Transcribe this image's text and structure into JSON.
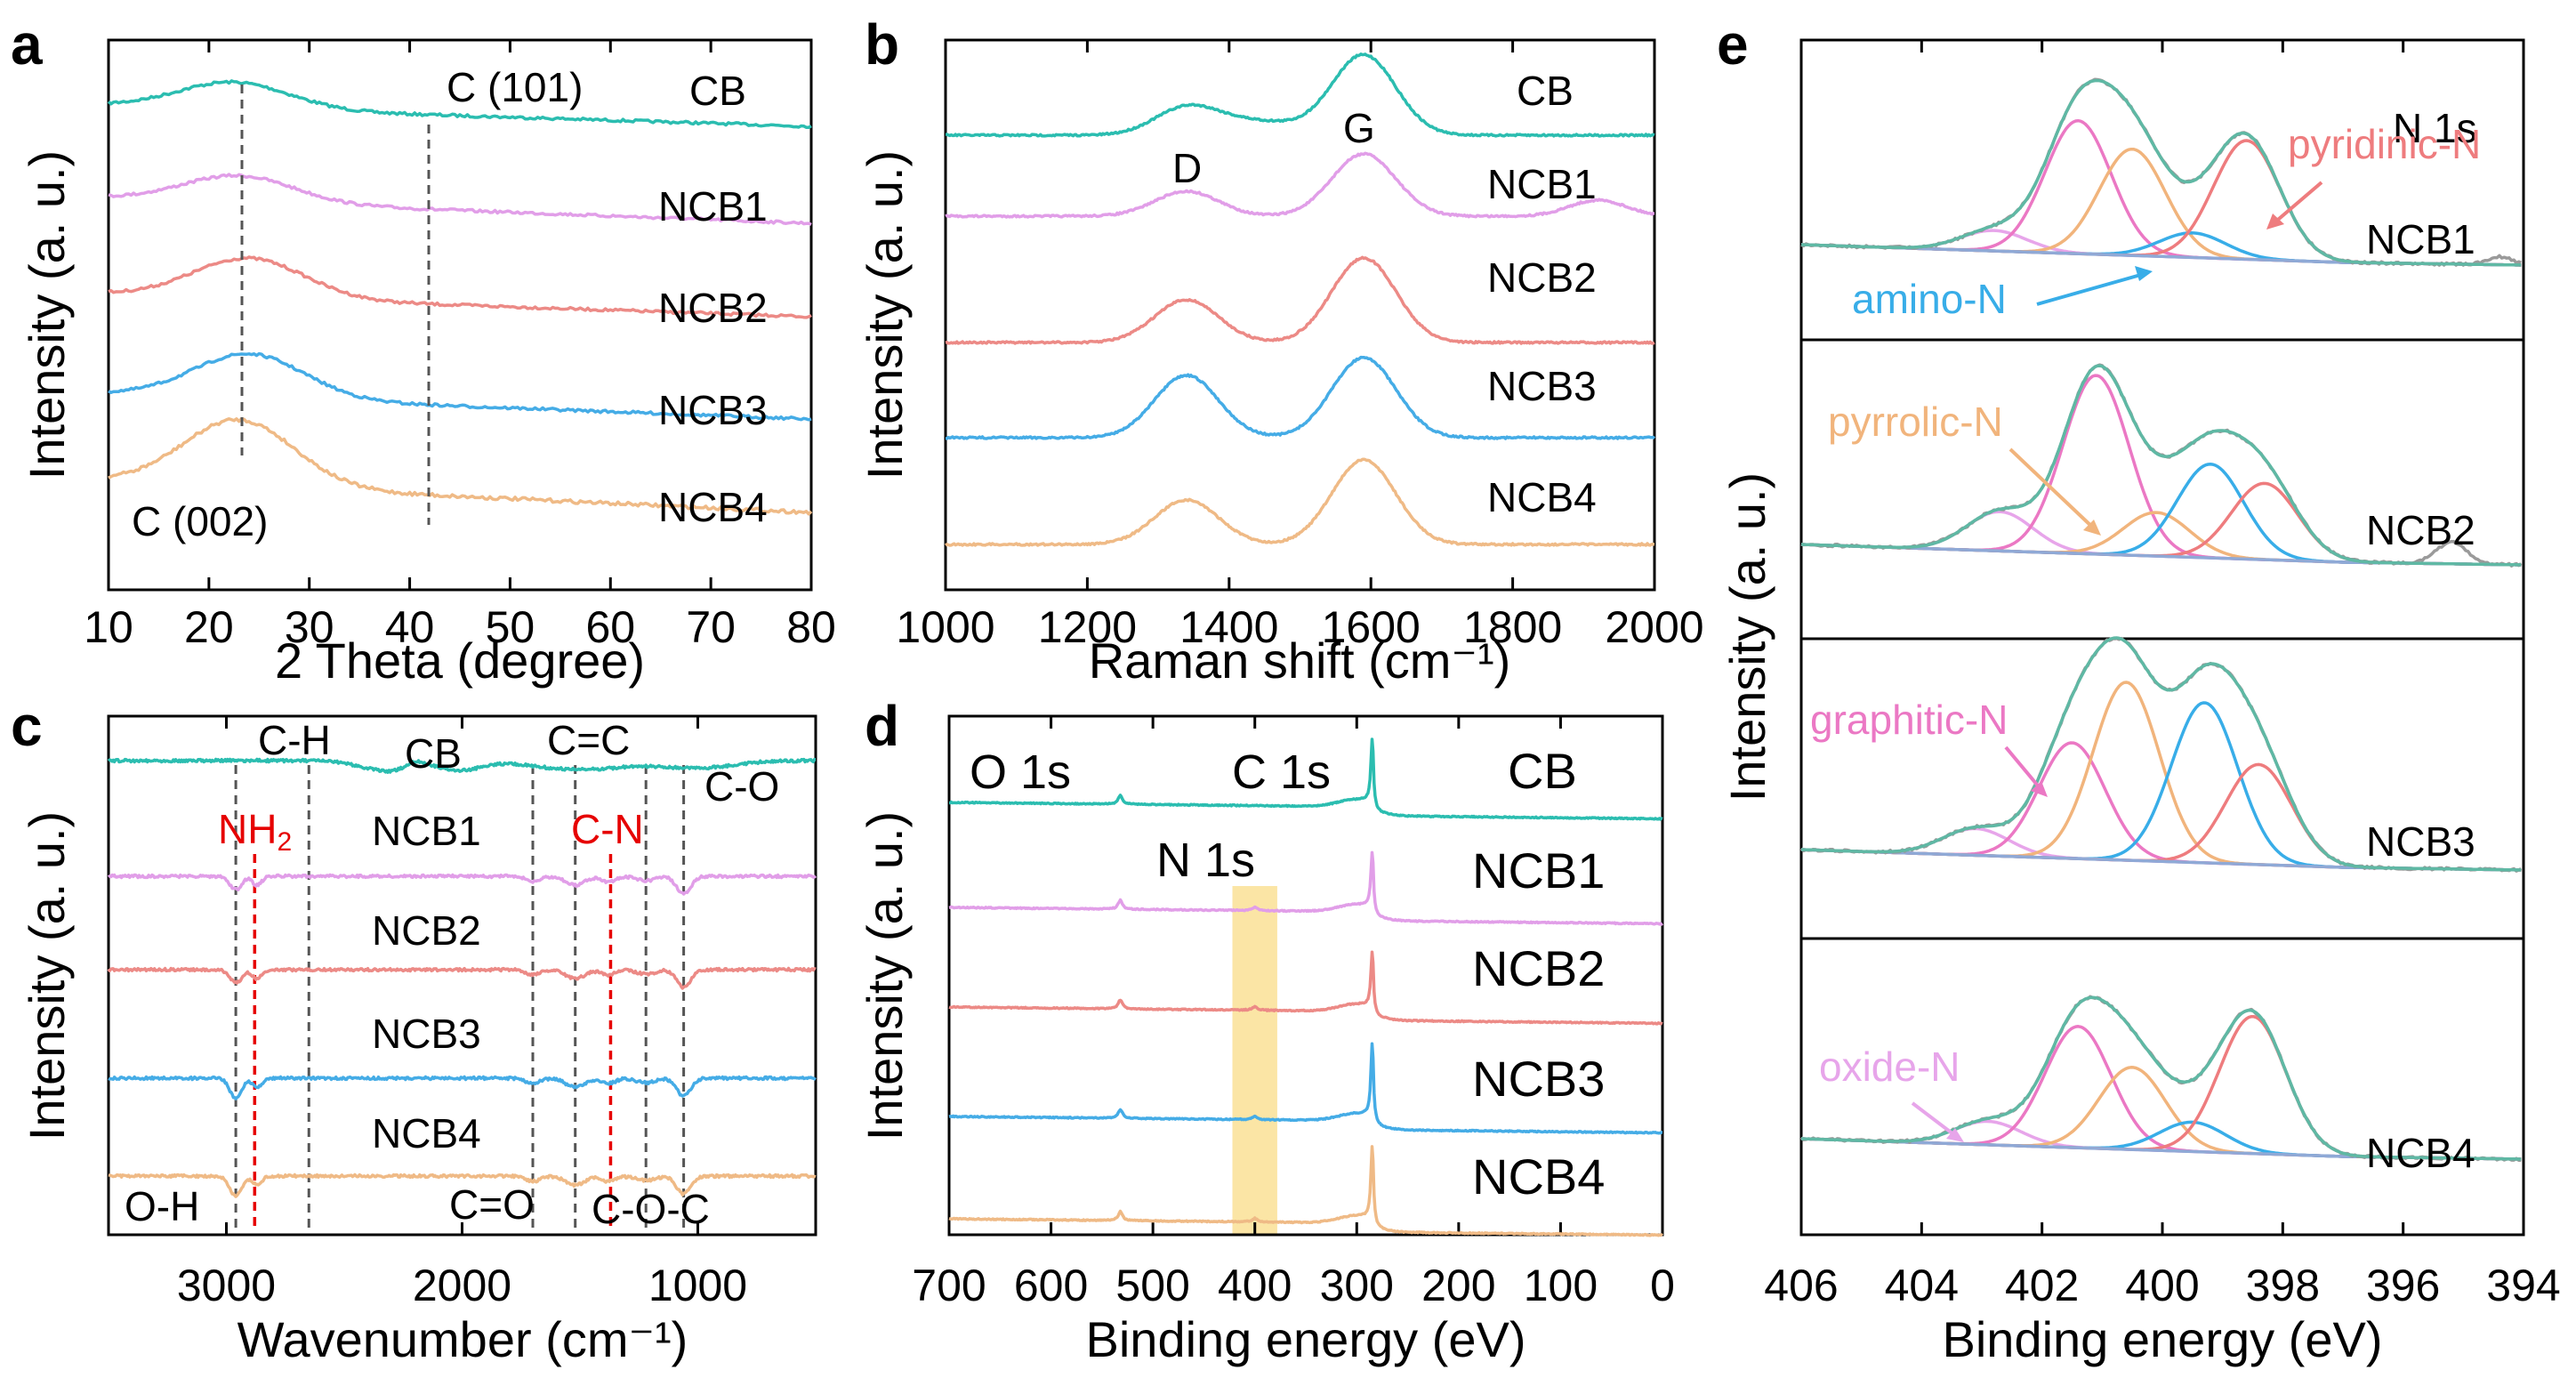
{
  "colors": {
    "CB": "#2bbdb0",
    "NCB1": "#e19ee8",
    "NCB2": "#ec8a86",
    "NCB3": "#45ace6",
    "NCB4": "#efba86",
    "pyridinic": "#ee7c7e",
    "pyrrolic": "#f1b47c",
    "graphitic": "#eb78c4",
    "oxide": "#e7a5ea",
    "amino": "#38ade8",
    "envelope": "#5fb8a4",
    "red_label": "#e60000",
    "highlight": "#fbe5a5"
  },
  "chart_data": [
    {
      "panel": "a",
      "type": "line",
      "xlabel": "2 Theta (degree)",
      "ylabel": "Intensity (a. u.)",
      "xlim": [
        10,
        80
      ],
      "xticks": [
        "10",
        "20",
        "30",
        "40",
        "50",
        "60",
        "70",
        "80"
      ],
      "series": [
        {
          "name": "CB",
          "values": [
            [
              10,
              1.0
            ],
            [
              15,
              0.96
            ],
            [
              20,
              1.06
            ],
            [
              23,
              1.1
            ],
            [
              28,
              0.99
            ],
            [
              40,
              0.92
            ],
            [
              60,
              0.88
            ],
            [
              80,
              0.86
            ]
          ]
        },
        {
          "name": "NCB1",
          "values": [
            [
              10,
              1.0
            ],
            [
              15,
              0.98
            ],
            [
              20,
              1.08
            ],
            [
              23,
              1.12
            ],
            [
              28,
              1.0
            ],
            [
              40,
              0.94
            ],
            [
              60,
              0.9
            ],
            [
              80,
              0.88
            ]
          ]
        },
        {
          "name": "NCB2",
          "values": [
            [
              10,
              1.0
            ],
            [
              15,
              0.98
            ],
            [
              20,
              1.1
            ],
            [
              24,
              1.15
            ],
            [
              28,
              1.02
            ],
            [
              40,
              0.94
            ],
            [
              60,
              0.9
            ],
            [
              80,
              0.87
            ]
          ]
        },
        {
          "name": "NCB3",
          "values": [
            [
              10,
              1.0
            ],
            [
              15,
              1.01
            ],
            [
              20,
              1.13
            ],
            [
              24,
              1.18
            ],
            [
              28,
              1.05
            ],
            [
              40,
              0.93
            ],
            [
              60,
              0.89
            ],
            [
              80,
              0.86
            ]
          ]
        },
        {
          "name": "NCB4",
          "values": [
            [
              10,
              1.0
            ],
            [
              15,
              1.06
            ],
            [
              20,
              1.22
            ],
            [
              23,
              1.28
            ],
            [
              28,
              1.1
            ],
            [
              40,
              0.93
            ],
            [
              60,
              0.88
            ],
            [
              80,
              0.85
            ]
          ]
        }
      ],
      "annotations": [
        "C (101)",
        "C (002)"
      ],
      "reference_lines": [
        23,
        42
      ]
    },
    {
      "panel": "b",
      "type": "line",
      "xlabel": "Raman shift (cm⁻¹)",
      "ylabel": "Intensity (a. u.)",
      "xlim": [
        1000,
        2000
      ],
      "xticks": [
        "1000",
        "1200",
        "1400",
        "1600",
        "1800",
        "2000"
      ],
      "series": [
        {
          "name": "CB",
          "values": [
            [
              1000,
              0
            ],
            [
              1200,
              0.02
            ],
            [
              1340,
              0.3
            ],
            [
              1440,
              0.2
            ],
            [
              1590,
              1.0
            ],
            [
              1700,
              0.05
            ],
            [
              2000,
              0
            ]
          ]
        },
        {
          "name": "NCB1",
          "values": [
            [
              1000,
              0
            ],
            [
              1200,
              0.02
            ],
            [
              1340,
              0.3
            ],
            [
              1440,
              0.12
            ],
            [
              1590,
              1.0
            ],
            [
              1700,
              0.05
            ],
            [
              1900,
              0.1
            ],
            [
              2000,
              0
            ]
          ]
        },
        {
          "name": "NCB2",
          "values": [
            [
              1000,
              0
            ],
            [
              1200,
              0.02
            ],
            [
              1340,
              0.55
            ],
            [
              1440,
              0.2
            ],
            [
              1590,
              1.0
            ],
            [
              1700,
              0.05
            ],
            [
              2000,
              0
            ]
          ]
        },
        {
          "name": "NCB3",
          "values": [
            [
              1000,
              0
            ],
            [
              1200,
              0.02
            ],
            [
              1340,
              0.8
            ],
            [
              1440,
              0.2
            ],
            [
              1590,
              1.0
            ],
            [
              1700,
              0.05
            ],
            [
              2000,
              0
            ]
          ]
        },
        {
          "name": "NCB4",
          "values": [
            [
              1000,
              0
            ],
            [
              1200,
              0.02
            ],
            [
              1340,
              0.55
            ],
            [
              1440,
              0.15
            ],
            [
              1590,
              1.0
            ],
            [
              1700,
              0.05
            ],
            [
              2000,
              0
            ]
          ]
        }
      ],
      "annotations": [
        "D",
        "G"
      ]
    },
    {
      "panel": "c",
      "type": "line",
      "xlabel": "Wavenumber (cm⁻¹)",
      "ylabel": "Intensity (a. u.)",
      "xlim": [
        3500,
        500
      ],
      "xticks": [
        "3000",
        "2000",
        "1000"
      ],
      "series": [
        {
          "name": "CB"
        },
        {
          "name": "NCB1"
        },
        {
          "name": "NCB2"
        },
        {
          "name": "NCB3"
        },
        {
          "name": "NCB4"
        }
      ],
      "annotations": {
        "ch": "C-H",
        "cc": "C=C",
        "co": "C-O",
        "nh2": "NH",
        "nh2_sub": "2",
        "cn": "C-N",
        "oh": "O-H",
        "cdo": "C=O",
        "coc": "C-O-C"
      },
      "reference_lines": [
        2960,
        2650,
        1700,
        1520,
        1220,
        1060
      ],
      "red_lines": [
        2880,
        1370
      ]
    },
    {
      "panel": "d",
      "type": "line",
      "xlabel": "Binding energy (eV)",
      "ylabel": "Intensity (a. u.)",
      "xlim": [
        700,
        0
      ],
      "xticks": [
        "700",
        "600",
        "500",
        "400",
        "300",
        "200",
        "100",
        "0"
      ],
      "series": [
        {
          "name": "CB"
        },
        {
          "name": "NCB1"
        },
        {
          "name": "NCB2"
        },
        {
          "name": "NCB3"
        },
        {
          "name": "NCB4"
        }
      ],
      "annotations": {
        "o1s": "O 1s",
        "c1s": "C 1s",
        "n1s": "N 1s"
      },
      "peaks": {
        "O 1s": 532,
        "C 1s": 284.8,
        "N 1s": 400
      },
      "highlight_range": [
        378,
        422
      ]
    },
    {
      "panel": "e",
      "type": "line",
      "title": "N 1s",
      "xlabel": "Binding energy (eV)",
      "ylabel": "Intensity (a. u.)",
      "xlim": [
        406,
        394
      ],
      "xticks": [
        "406",
        "404",
        "402",
        "400",
        "398",
        "396",
        "394"
      ],
      "subplots": [
        {
          "name": "NCB1",
          "components": [
            {
              "label": "oxide-N",
              "center": 402.8,
              "amp": 0.1
            },
            {
              "label": "graphitic-N",
              "center": 401.4,
              "amp": 0.65
            },
            {
              "label": "pyrrolic-N",
              "center": 400.5,
              "amp": 0.52
            },
            {
              "label": "amino-N",
              "center": 399.5,
              "amp": 0.12
            },
            {
              "label": "pyridinic-N",
              "center": 398.6,
              "amp": 0.58
            }
          ]
        },
        {
          "name": "NCB2",
          "components": [
            {
              "label": "oxide-N",
              "center": 402.7,
              "amp": 0.18
            },
            {
              "label": "graphitic-N",
              "center": 401.1,
              "amp": 0.82
            },
            {
              "label": "pyrrolic-N",
              "center": 400.1,
              "amp": 0.2
            },
            {
              "label": "amino-N",
              "center": 399.2,
              "amp": 0.43
            },
            {
              "label": "pyridinic-N",
              "center": 398.3,
              "amp": 0.35
            }
          ]
        },
        {
          "name": "NCB3",
          "components": [
            {
              "label": "oxide-N",
              "center": 403.1,
              "amp": 0.12
            },
            {
              "label": "graphitic-N",
              "center": 401.5,
              "amp": 0.52
            },
            {
              "label": "pyrrolic-N",
              "center": 400.6,
              "amp": 0.8
            },
            {
              "label": "amino-N",
              "center": 399.3,
              "amp": 0.72
            },
            {
              "label": "pyridinic-N",
              "center": 398.4,
              "amp": 0.45
            }
          ]
        },
        {
          "name": "NCB4",
          "components": [
            {
              "label": "oxide-N",
              "center": 402.9,
              "amp": 0.12
            },
            {
              "label": "graphitic-N",
              "center": 401.4,
              "amp": 0.62
            },
            {
              "label": "pyrrolic-N",
              "center": 400.5,
              "amp": 0.42
            },
            {
              "label": "amino-N",
              "center": 399.5,
              "amp": 0.15
            },
            {
              "label": "pyridinic-N",
              "center": 398.5,
              "amp": 0.7
            }
          ]
        }
      ],
      "labels": {
        "pyridinic": "pyridinic-N",
        "amino": "amino-N",
        "pyrrolic": "pyrrolic-N",
        "graphitic": "graphitic-N",
        "oxide": "oxide-N"
      }
    }
  ],
  "panel_labels": [
    "a",
    "b",
    "c",
    "d",
    "e"
  ],
  "series_names": [
    "CB",
    "NCB1",
    "NCB2",
    "NCB3",
    "NCB4"
  ]
}
